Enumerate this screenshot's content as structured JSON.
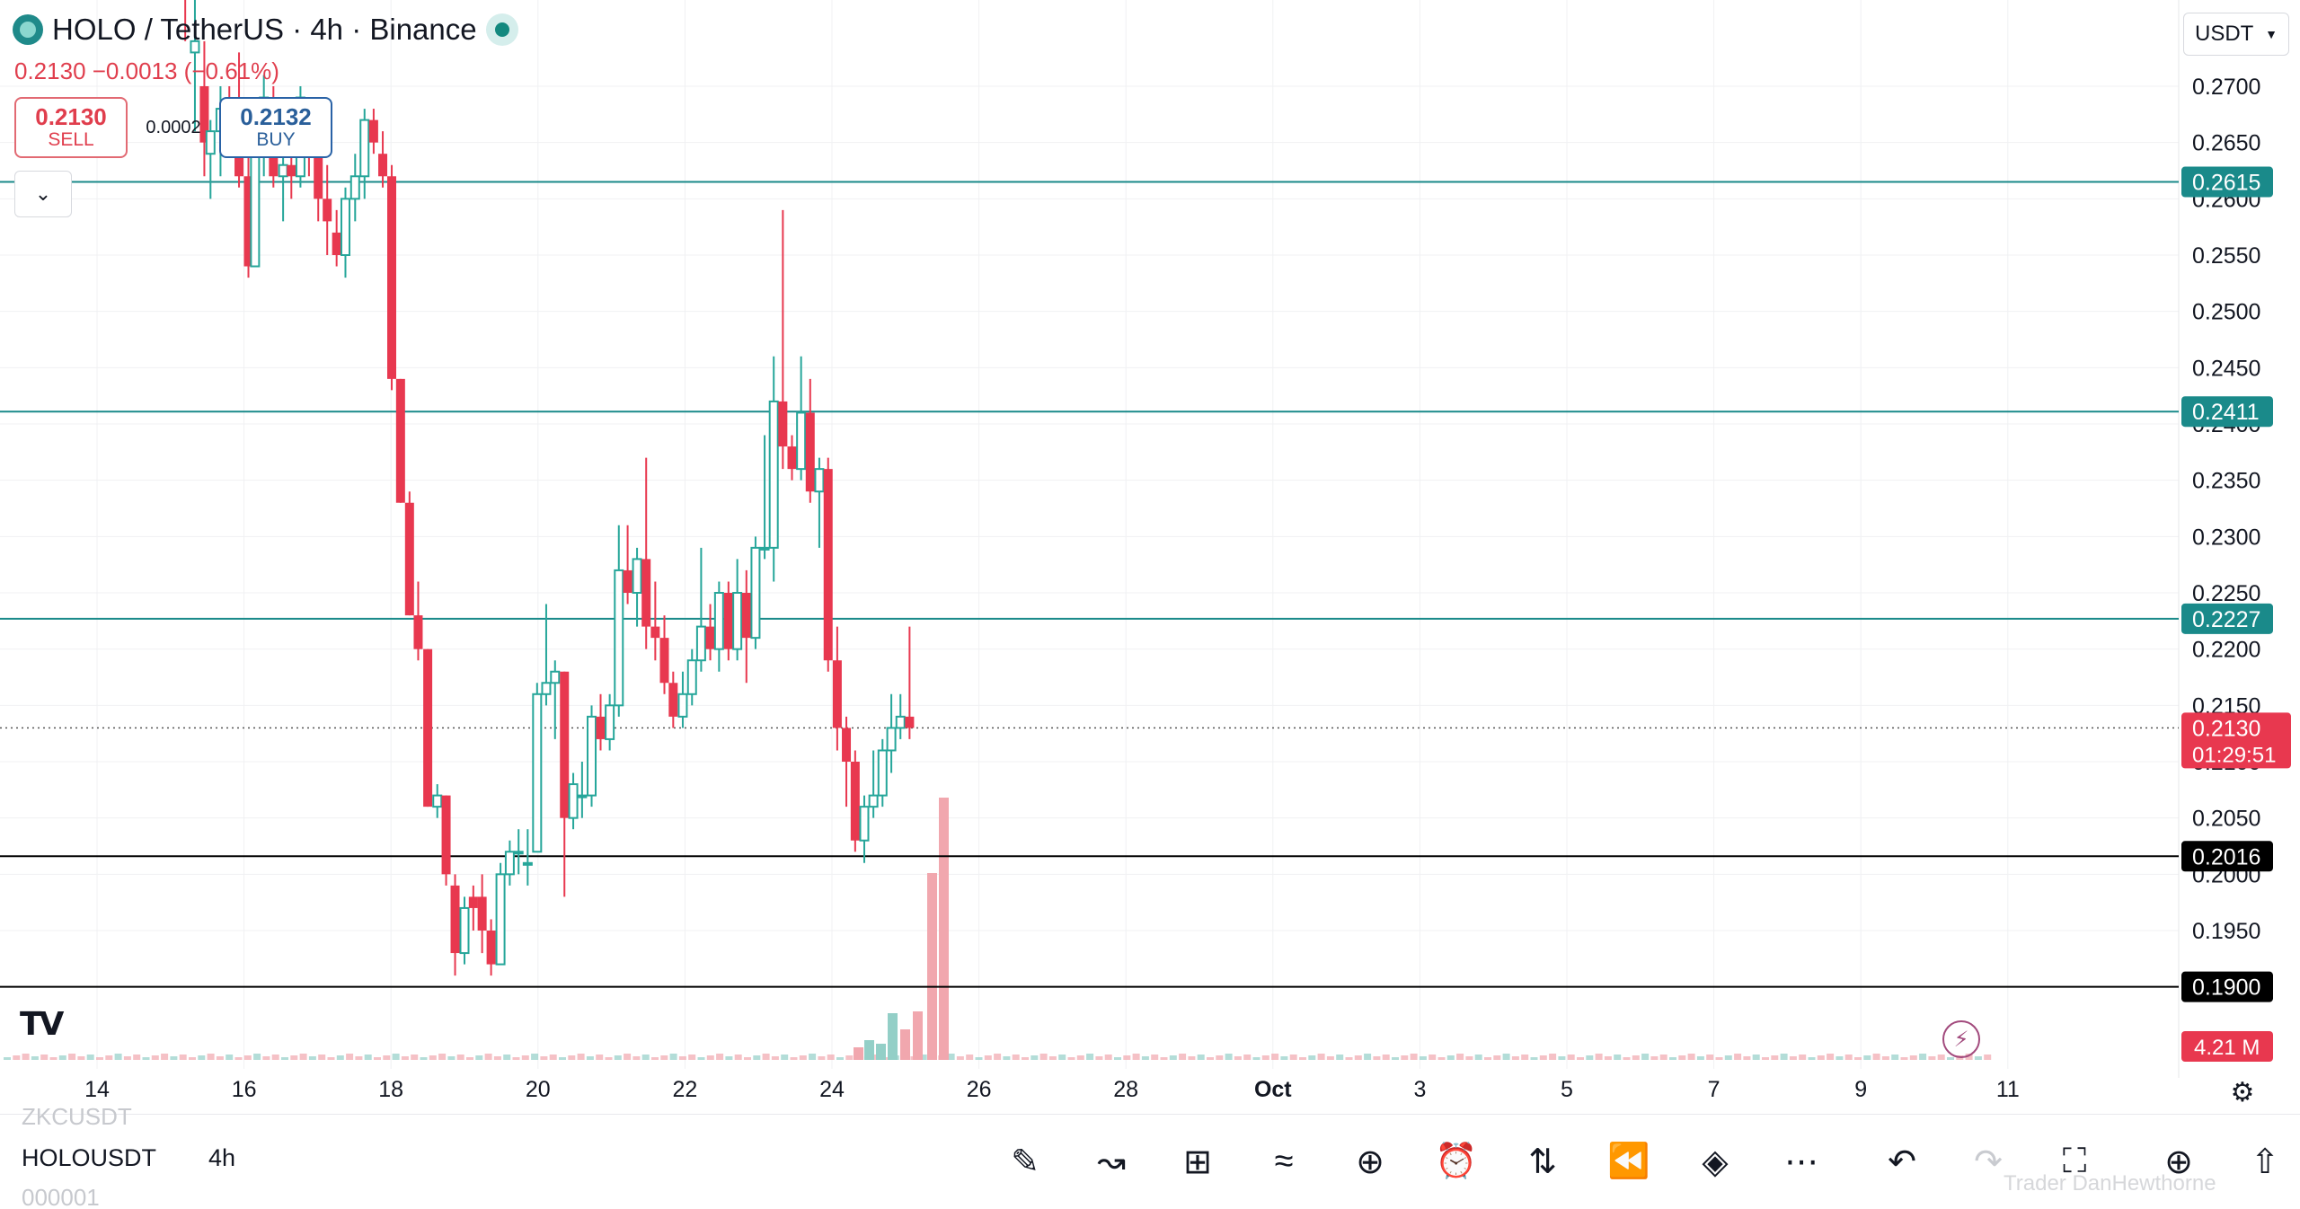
{
  "header": {
    "title": "HOLO / TetherUS · 4h · Binance",
    "price_line": "0.2130  −0.0013 (−0.61%)",
    "sell_price": "0.2130",
    "sell_label": "SELL",
    "buy_price": "0.2132",
    "buy_label": "BUY",
    "spread": "0.0002",
    "currency": "USDT"
  },
  "toolbar": {
    "ghost_above": "ZKCUSDT",
    "symbol": "HOLOUSDT",
    "timeframe": "4h",
    "ghost_below": "000001",
    "watermark": "Trader DanHewthorne",
    "tools": [
      "draw-icon",
      "indicators-icon",
      "layouts-icon",
      "strategy-icon",
      "add-icon",
      "alert-icon",
      "replay-candles-icon",
      "rewind-icon",
      "layers-icon",
      "more-icon",
      "undo-icon",
      "redo-icon",
      "fullscreen-icon",
      "compare-icon",
      "share-icon"
    ]
  },
  "colors": {
    "up": "#26a69a",
    "down": "#e8384f",
    "level": "#1a8a8a",
    "black_level": "#000000",
    "volume_down": "#f1a7ae",
    "volume_up": "#93cfc7"
  },
  "chart_data": {
    "type": "candlestick",
    "symbol": "HOLO/USDT",
    "timeframe": "4h",
    "exchange": "Binance",
    "x_tick_labels": [
      "14",
      "16",
      "18",
      "20",
      "22",
      "24",
      "26",
      "28",
      "Oct",
      "3",
      "5",
      "7",
      "9",
      "11"
    ],
    "y_tick_labels": [
      "0.2700",
      "0.2650",
      "0.2600",
      "0.2550",
      "0.2500",
      "0.2450",
      "0.2400",
      "0.2350",
      "0.2300",
      "0.2250",
      "0.2200",
      "0.2150",
      "0.2100",
      "0.2050",
      "0.2000",
      "0.1950",
      "0.1900"
    ],
    "y_range": [
      0.1865,
      0.2745
    ],
    "horizontal_levels": [
      {
        "value": 0.2615,
        "label": "0.2615",
        "style": "teal"
      },
      {
        "value": 0.2411,
        "label": "0.2411",
        "style": "teal"
      },
      {
        "value": 0.2227,
        "label": "0.2227",
        "style": "teal"
      },
      {
        "value": 0.2016,
        "label": "0.2016",
        "style": "black"
      },
      {
        "value": 0.19,
        "label": "0.1900",
        "style": "black"
      }
    ],
    "last_price": {
      "value": 0.213,
      "label": "0.2130",
      "countdown": "01:29:51"
    },
    "volume_label": "4.21 M",
    "candles": [
      {
        "x": 0.6,
        "o": 0.28,
        "h": 0.281,
        "l": 0.274,
        "c": 0.279
      },
      {
        "x": 0.666,
        "o": 0.273,
        "h": 0.28,
        "l": 0.266,
        "c": 0.274
      },
      {
        "x": 0.73,
        "o": 0.27,
        "h": 0.274,
        "l": 0.262,
        "c": 0.265
      },
      {
        "x": 0.772,
        "o": 0.264,
        "h": 0.267,
        "l": 0.26,
        "c": 0.266
      },
      {
        "x": 0.84,
        "o": 0.266,
        "h": 0.27,
        "l": 0.262,
        "c": 0.268
      },
      {
        "x": 0.9,
        "o": 0.268,
        "h": 0.27,
        "l": 0.264,
        "c": 0.265
      },
      {
        "x": 0.966,
        "o": 0.265,
        "h": 0.273,
        "l": 0.261,
        "c": 0.262
      },
      {
        "x": 1.03,
        "o": 0.262,
        "h": 0.265,
        "l": 0.253,
        "c": 0.254
      },
      {
        "x": 1.075,
        "o": 0.254,
        "h": 0.267,
        "l": 0.254,
        "c": 0.264
      },
      {
        "x": 1.135,
        "o": 0.264,
        "h": 0.271,
        "l": 0.262,
        "c": 0.269
      },
      {
        "x": 1.2,
        "o": 0.269,
        "h": 0.27,
        "l": 0.261,
        "c": 0.262
      },
      {
        "x": 1.266,
        "o": 0.262,
        "h": 0.266,
        "l": 0.258,
        "c": 0.263
      },
      {
        "x": 1.322,
        "o": 0.263,
        "h": 0.264,
        "l": 0.26,
        "c": 0.262
      },
      {
        "x": 1.384,
        "o": 0.262,
        "h": 0.27,
        "l": 0.261,
        "c": 0.269
      },
      {
        "x": 1.442,
        "o": 0.268,
        "h": 0.269,
        "l": 0.262,
        "c": 0.265
      },
      {
        "x": 1.505,
        "o": 0.265,
        "h": 0.266,
        "l": 0.258,
        "c": 0.26
      },
      {
        "x": 1.566,
        "o": 0.26,
        "h": 0.263,
        "l": 0.255,
        "c": 0.258
      },
      {
        "x": 1.63,
        "o": 0.257,
        "h": 0.259,
        "l": 0.254,
        "c": 0.255
      },
      {
        "x": 1.69,
        "o": 0.255,
        "h": 0.261,
        "l": 0.253,
        "c": 0.26
      },
      {
        "x": 1.756,
        "o": 0.26,
        "h": 0.264,
        "l": 0.258,
        "c": 0.262
      },
      {
        "x": 1.82,
        "o": 0.262,
        "h": 0.268,
        "l": 0.26,
        "c": 0.267
      },
      {
        "x": 1.882,
        "o": 0.267,
        "h": 0.268,
        "l": 0.264,
        "c": 0.265
      },
      {
        "x": 1.944,
        "o": 0.264,
        "h": 0.266,
        "l": 0.261,
        "c": 0.262
      },
      {
        "x": 2.005,
        "o": 0.262,
        "h": 0.263,
        "l": 0.243,
        "c": 0.244
      },
      {
        "x": 2.065,
        "o": 0.244,
        "h": 0.244,
        "l": 0.233,
        "c": 0.233
      },
      {
        "x": 2.126,
        "o": 0.233,
        "h": 0.234,
        "l": 0.223,
        "c": 0.223
      },
      {
        "x": 2.185,
        "o": 0.223,
        "h": 0.226,
        "l": 0.219,
        "c": 0.22
      },
      {
        "x": 2.25,
        "o": 0.22,
        "h": 0.22,
        "l": 0.206,
        "c": 0.206
      },
      {
        "x": 2.315,
        "o": 0.206,
        "h": 0.208,
        "l": 0.205,
        "c": 0.207
      },
      {
        "x": 2.375,
        "o": 0.207,
        "h": 0.207,
        "l": 0.199,
        "c": 0.2
      },
      {
        "x": 2.436,
        "o": 0.199,
        "h": 0.2,
        "l": 0.191,
        "c": 0.193
      },
      {
        "x": 2.5,
        "o": 0.193,
        "h": 0.198,
        "l": 0.192,
        "c": 0.197
      },
      {
        "x": 2.56,
        "o": 0.198,
        "h": 0.199,
        "l": 0.195,
        "c": 0.197
      },
      {
        "x": 2.62,
        "o": 0.198,
        "h": 0.2,
        "l": 0.193,
        "c": 0.195
      },
      {
        "x": 2.681,
        "o": 0.195,
        "h": 0.196,
        "l": 0.191,
        "c": 0.192
      },
      {
        "x": 2.745,
        "o": 0.192,
        "h": 0.201,
        "l": 0.192,
        "c": 0.2
      },
      {
        "x": 2.808,
        "o": 0.2,
        "h": 0.203,
        "l": 0.199,
        "c": 0.202
      },
      {
        "x": 2.868,
        "o": 0.202,
        "h": 0.204,
        "l": 0.2,
        "c": 0.202
      },
      {
        "x": 2.93,
        "o": 0.201,
        "h": 0.204,
        "l": 0.199,
        "c": 0.201
      },
      {
        "x": 2.994,
        "o": 0.202,
        "h": 0.217,
        "l": 0.202,
        "c": 0.216
      },
      {
        "x": 3.056,
        "o": 0.216,
        "h": 0.224,
        "l": 0.215,
        "c": 0.217
      },
      {
        "x": 3.116,
        "o": 0.217,
        "h": 0.219,
        "l": 0.212,
        "c": 0.218
      },
      {
        "x": 3.18,
        "o": 0.218,
        "h": 0.218,
        "l": 0.198,
        "c": 0.205
      },
      {
        "x": 3.24,
        "o": 0.205,
        "h": 0.209,
        "l": 0.204,
        "c": 0.208
      },
      {
        "x": 3.3,
        "o": 0.207,
        "h": 0.21,
        "l": 0.205,
        "c": 0.207
      },
      {
        "x": 3.365,
        "o": 0.207,
        "h": 0.215,
        "l": 0.206,
        "c": 0.214
      },
      {
        "x": 3.426,
        "o": 0.214,
        "h": 0.216,
        "l": 0.211,
        "c": 0.212
      },
      {
        "x": 3.488,
        "o": 0.212,
        "h": 0.216,
        "l": 0.211,
        "c": 0.215
      },
      {
        "x": 3.55,
        "o": 0.215,
        "h": 0.231,
        "l": 0.214,
        "c": 0.227
      },
      {
        "x": 3.61,
        "o": 0.227,
        "h": 0.231,
        "l": 0.224,
        "c": 0.225
      },
      {
        "x": 3.674,
        "o": 0.225,
        "h": 0.229,
        "l": 0.222,
        "c": 0.228
      },
      {
        "x": 3.736,
        "o": 0.228,
        "h": 0.237,
        "l": 0.22,
        "c": 0.222
      },
      {
        "x": 3.798,
        "o": 0.222,
        "h": 0.226,
        "l": 0.219,
        "c": 0.221
      },
      {
        "x": 3.86,
        "o": 0.221,
        "h": 0.223,
        "l": 0.216,
        "c": 0.217
      },
      {
        "x": 3.92,
        "o": 0.217,
        "h": 0.218,
        "l": 0.213,
        "c": 0.214
      },
      {
        "x": 3.985,
        "o": 0.214,
        "h": 0.218,
        "l": 0.213,
        "c": 0.216
      },
      {
        "x": 4.048,
        "o": 0.216,
        "h": 0.22,
        "l": 0.215,
        "c": 0.219
      },
      {
        "x": 4.11,
        "o": 0.219,
        "h": 0.229,
        "l": 0.218,
        "c": 0.222
      },
      {
        "x": 4.172,
        "o": 0.222,
        "h": 0.224,
        "l": 0.219,
        "c": 0.22
      },
      {
        "x": 4.232,
        "o": 0.22,
        "h": 0.226,
        "l": 0.218,
        "c": 0.225
      },
      {
        "x": 4.296,
        "o": 0.225,
        "h": 0.226,
        "l": 0.219,
        "c": 0.22
      },
      {
        "x": 4.356,
        "o": 0.22,
        "h": 0.228,
        "l": 0.219,
        "c": 0.225
      },
      {
        "x": 4.418,
        "o": 0.225,
        "h": 0.227,
        "l": 0.217,
        "c": 0.221
      },
      {
        "x": 4.48,
        "o": 0.221,
        "h": 0.23,
        "l": 0.22,
        "c": 0.229
      },
      {
        "x": 4.542,
        "o": 0.229,
        "h": 0.239,
        "l": 0.228,
        "c": 0.229
      },
      {
        "x": 4.604,
        "o": 0.229,
        "h": 0.246,
        "l": 0.226,
        "c": 0.242
      },
      {
        "x": 4.666,
        "o": 0.242,
        "h": 0.259,
        "l": 0.236,
        "c": 0.238
      },
      {
        "x": 4.728,
        "o": 0.238,
        "h": 0.239,
        "l": 0.235,
        "c": 0.236
      },
      {
        "x": 4.79,
        "o": 0.236,
        "h": 0.246,
        "l": 0.235,
        "c": 0.241
      },
      {
        "x": 4.852,
        "o": 0.241,
        "h": 0.244,
        "l": 0.233,
        "c": 0.234
      },
      {
        "x": 4.914,
        "o": 0.234,
        "h": 0.237,
        "l": 0.229,
        "c": 0.236
      },
      {
        "x": 4.974,
        "o": 0.236,
        "h": 0.237,
        "l": 0.218,
        "c": 0.219
      },
      {
        "x": 5.036,
        "o": 0.219,
        "h": 0.222,
        "l": 0.211,
        "c": 0.213
      },
      {
        "x": 5.098,
        "o": 0.213,
        "h": 0.214,
        "l": 0.206,
        "c": 0.21
      },
      {
        "x": 5.158,
        "o": 0.21,
        "h": 0.211,
        "l": 0.202,
        "c": 0.203
      },
      {
        "x": 5.22,
        "o": 0.203,
        "h": 0.207,
        "l": 0.201,
        "c": 0.206
      },
      {
        "x": 5.282,
        "o": 0.206,
        "h": 0.211,
        "l": 0.205,
        "c": 0.207
      },
      {
        "x": 5.344,
        "o": 0.207,
        "h": 0.212,
        "l": 0.206,
        "c": 0.211
      },
      {
        "x": 5.404,
        "o": 0.211,
        "h": 0.216,
        "l": 0.209,
        "c": 0.213
      },
      {
        "x": 5.466,
        "o": 0.213,
        "h": 0.216,
        "l": 0.212,
        "c": 0.214
      },
      {
        "x": 5.528,
        "o": 0.214,
        "h": 0.222,
        "l": 0.212,
        "c": 0.213
      }
    ],
    "x_axis_note": "x values are positions in units of 2-day tick steps (tick '14' at 0)"
  }
}
